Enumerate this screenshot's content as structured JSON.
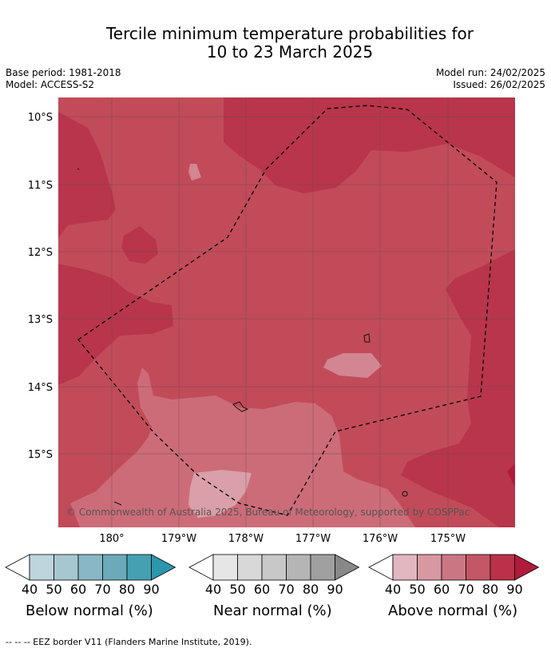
{
  "title_line1": "Tercile minimum temperature probabilities for",
  "title_line2": "10 to 23 March 2025",
  "meta": {
    "base_period": "Base period: 1981-2018",
    "model": "Model: ACCESS-S2",
    "model_run": "Model run: 24/02/2025",
    "issued": "Issued: 26/02/2025"
  },
  "map": {
    "lat_labels": [
      "10°S",
      "11°S",
      "12°S",
      "13°S",
      "14°S",
      "15°S"
    ],
    "lon_labels": [
      "180°",
      "179°W",
      "178°W",
      "177°W",
      "176°W",
      "175°W"
    ],
    "copyright": "© Commonwealth of Australia 2025, Bureau of Meteorology, supported by COSPPac"
  },
  "legend": {
    "below": {
      "label": "Below normal (%)",
      "ticks": [
        "40",
        "50",
        "60",
        "70",
        "80",
        "90"
      ],
      "colors": [
        "#ffffff",
        "#bfd5de",
        "#a6c7d0",
        "#8ab7c5",
        "#6caaba",
        "#45a0b1",
        "#2b96ad"
      ]
    },
    "near": {
      "label": "Near normal (%)",
      "ticks": [
        "40",
        "50",
        "60",
        "70",
        "80",
        "90"
      ],
      "colors": [
        "#ffffff",
        "#e6e6e6",
        "#d8d8d8",
        "#c8c8c8",
        "#b5b5b5",
        "#a0a0a0",
        "#888888"
      ]
    },
    "above": {
      "label": "Above normal (%)",
      "ticks": [
        "40",
        "50",
        "60",
        "70",
        "80",
        "90"
      ],
      "colors": [
        "#ffffff",
        "#e2b7bf",
        "#d898a2",
        "#cb7783",
        "#c35766",
        "#bb3149",
        "#b01b3c"
      ]
    }
  },
  "footer": "--  --  -- EEZ border V11 (Flanders Marine Institute, 2019)."
}
